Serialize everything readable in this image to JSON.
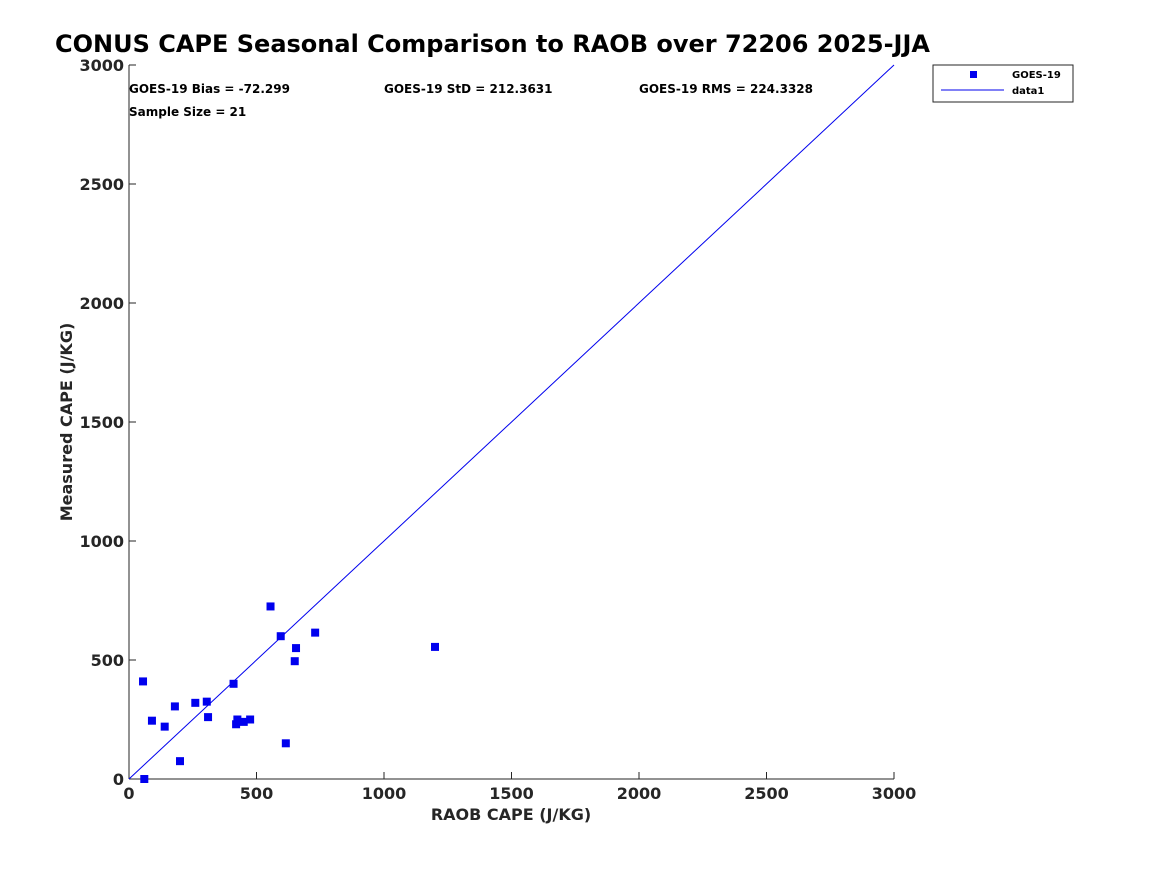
{
  "chart_data": {
    "type": "scatter",
    "title": "CONUS CAPE Seasonal Comparison to RAOB over 72206 2025-JJA",
    "xlabel": "RAOB CAPE (J/KG)",
    "ylabel": "Measured CAPE (J/KG)",
    "xlim": [
      0,
      3000
    ],
    "ylim": [
      0,
      3000
    ],
    "xticks": [
      "0",
      "500",
      "1000",
      "1500",
      "2000",
      "2500",
      "3000"
    ],
    "yticks": [
      "0",
      "500",
      "1000",
      "1500",
      "2000",
      "2500",
      "3000"
    ],
    "grid": false,
    "legend_position": "top-right",
    "stats": {
      "bias": "GOES-19 Bias = -72.299",
      "std": "GOES-19 StD = 212.3631",
      "rms": "GOES-19 RMS = 224.3328",
      "sample": "Sample Size = 21"
    },
    "series": [
      {
        "name": "GOES-19",
        "kind": "marker",
        "color": "#0000ee",
        "x": [
          60,
          55,
          90,
          140,
          180,
          200,
          260,
          305,
          310,
          410,
          420,
          425,
          450,
          475,
          555,
          595,
          615,
          650,
          655,
          730,
          1200
        ],
        "y": [
          0,
          410,
          245,
          220,
          305,
          75,
          320,
          325,
          260,
          400,
          230,
          250,
          240,
          250,
          725,
          600,
          150,
          495,
          550,
          615,
          555
        ]
      },
      {
        "name": "data1",
        "kind": "line",
        "color": "#0000ee",
        "x": [
          0,
          3000
        ],
        "y": [
          0,
          3000
        ]
      }
    ]
  }
}
